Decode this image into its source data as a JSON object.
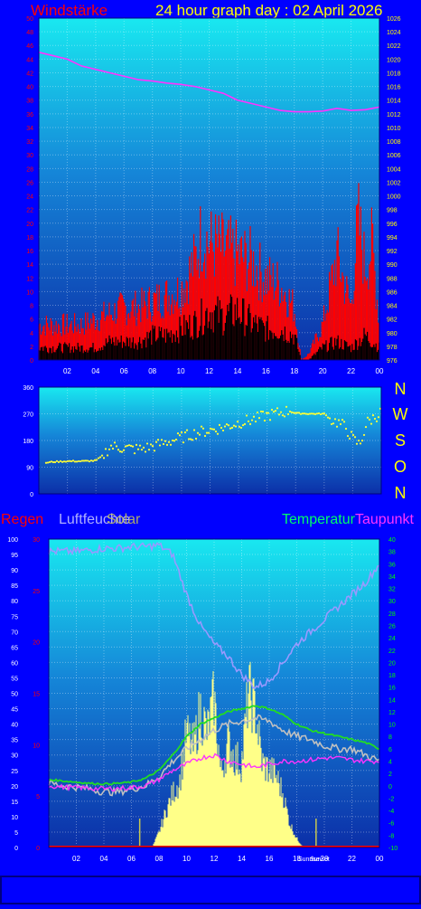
{
  "header": {
    "title": "24 hour graph day : 02 April 2026"
  },
  "colors": {
    "background": "#0000ff",
    "wind_max": "#ff0000",
    "wind_avg": "#000000",
    "pressure": "#ff33ff",
    "direction": "#ffff33",
    "humidity": "#9999ff",
    "temperature": "#22dd22",
    "dewpoint": "#ff33ff",
    "sun": "#ffff88",
    "rain": "#ff0000",
    "chill": "#c0c0c0",
    "axis_red": "#ff0000",
    "axis_yellow": "#ffff00",
    "axis_green": "#00ff00",
    "axis_white": "#ffffff"
  },
  "chart_data": [
    {
      "type": "line",
      "title": "Windstärke",
      "x_ticks": [
        "02",
        "04",
        "06",
        "08",
        "10",
        "12",
        "14",
        "16",
        "18",
        "20",
        "22",
        "00"
      ],
      "y_left_ticks": [
        0,
        2,
        4,
        6,
        8,
        10,
        12,
        14,
        16,
        18,
        20,
        22,
        24,
        26,
        28,
        30,
        32,
        34,
        36,
        38,
        40,
        42,
        44,
        46,
        48,
        50
      ],
      "y_left_range": [
        0,
        50
      ],
      "y_right_ticks": [
        976,
        978,
        980,
        982,
        984,
        986,
        988,
        990,
        992,
        994,
        996,
        998,
        1000,
        1002,
        1004,
        1006,
        1008,
        1010,
        1012,
        1014,
        1016,
        1018,
        1020,
        1022,
        1024,
        1026
      ],
      "y_right_range": [
        976,
        1026
      ],
      "series": [
        {
          "key": "wind_max",
          "color": "#ff0000",
          "axis": "left",
          "x": [
            0,
            1,
            2,
            3,
            4,
            5,
            6,
            7,
            8,
            9,
            10,
            11,
            11.5,
            12,
            13,
            14,
            15,
            16,
            17,
            18,
            18.5,
            19,
            20,
            20.5,
            21,
            22,
            22.5,
            23,
            23.5,
            24
          ],
          "values": [
            6,
            6,
            6,
            6,
            7,
            8,
            9,
            9,
            10,
            11,
            12,
            17,
            22,
            20,
            19,
            18,
            17,
            14,
            13,
            9,
            0,
            1,
            6,
            12,
            18,
            9,
            24,
            16,
            20,
            6
          ]
        },
        {
          "key": "wind_avg",
          "color": "#000000",
          "axis": "left",
          "x": [
            0,
            1,
            2,
            3,
            4,
            5,
            6,
            7,
            8,
            9,
            10,
            11,
            12,
            13,
            14,
            15,
            16,
            17,
            18,
            18.5,
            19,
            20,
            21,
            22,
            23,
            24
          ],
          "values": [
            2,
            2,
            2,
            2,
            2,
            3,
            3,
            3,
            4,
            4,
            5,
            6,
            8,
            7,
            8,
            6,
            5,
            5,
            4,
            0,
            0,
            2,
            3,
            2,
            4,
            2
          ]
        },
        {
          "key": "pressure",
          "color": "#ff33ff",
          "axis": "right",
          "x": [
            0,
            1,
            2,
            3,
            4,
            5,
            6,
            7,
            8,
            9,
            10,
            11,
            12,
            13,
            14,
            15,
            16,
            17,
            18,
            19,
            20,
            21,
            22,
            23,
            24
          ],
          "values": [
            1021,
            1020.5,
            1020,
            1019,
            1018.5,
            1018,
            1017.5,
            1017,
            1016.8,
            1016.5,
            1016.3,
            1016,
            1015.5,
            1015,
            1014,
            1013.5,
            1013,
            1012.5,
            1012.3,
            1012.3,
            1012.4,
            1012.8,
            1012.5,
            1012.6,
            1013
          ]
        }
      ]
    },
    {
      "type": "scatter",
      "title": "Windrichtung",
      "x_range": [
        0,
        24
      ],
      "y_ticks": [
        0,
        90,
        180,
        270,
        360
      ],
      "y_range": [
        0,
        360
      ],
      "direction_labels": [
        "N",
        "W",
        "S",
        "O",
        "N"
      ],
      "series": [
        {
          "key": "direction",
          "color": "#ffff33",
          "x": [
            0,
            0.5,
            1,
            2,
            3,
            4,
            4.5,
            5,
            6,
            7,
            7.5,
            8,
            9,
            10,
            11,
            12,
            13,
            14,
            15,
            16,
            17,
            17.5,
            18,
            19,
            20,
            20.5,
            21,
            21.5,
            22,
            22.5,
            23,
            24
          ],
          "values": [
            95,
            105,
            108,
            110,
            110,
            112,
            130,
            160,
            155,
            150,
            155,
            160,
            175,
            190,
            205,
            215,
            225,
            240,
            250,
            265,
            275,
            280,
            272,
            270,
            270,
            250,
            240,
            225,
            185,
            165,
            240,
            275
          ]
        }
      ]
    },
    {
      "type": "line",
      "legend": [
        "Regen",
        "Luftfeuchte",
        "Solar",
        "Temperatur",
        "Taupunkt"
      ],
      "x_ticks": [
        "02",
        "04",
        "06",
        "08",
        "10",
        "12",
        "14",
        "16",
        "18",
        "20",
        "22",
        "00"
      ],
      "x_annotations": [
        "Sunrise",
        "Sunset"
      ],
      "y_humidity_ticks": [
        0,
        5,
        10,
        15,
        20,
        25,
        30,
        35,
        40,
        45,
        50,
        55,
        60,
        65,
        70,
        75,
        80,
        85,
        90,
        95,
        100
      ],
      "y_humidity_range": [
        0,
        100
      ],
      "y_rain_ticks": [
        0,
        5,
        10,
        15,
        20,
        25,
        30
      ],
      "y_rain_range": [
        0,
        30
      ],
      "y_temp_ticks": [
        -10,
        -8,
        -6,
        -4,
        -2,
        0,
        2,
        4,
        6,
        8,
        10,
        12,
        14,
        16,
        18,
        20,
        22,
        24,
        26,
        28,
        30,
        32,
        34,
        36,
        38,
        40
      ],
      "y_temp_range": [
        -10,
        40
      ],
      "series": [
        {
          "key": "sun",
          "name": "Solar",
          "color": "#ffff88",
          "axis": "humidity",
          "x": [
            0,
            7.5,
            8,
            8.5,
            9,
            9.5,
            10,
            10.5,
            11,
            11.5,
            12,
            12.5,
            13,
            13.5,
            14,
            14.5,
            15,
            15.5,
            16,
            16.5,
            17,
            17.5,
            18,
            18.5,
            24
          ],
          "values": [
            0,
            0,
            5,
            12,
            18,
            22,
            38,
            33,
            46,
            38,
            50,
            24,
            35,
            30,
            28,
            52,
            46,
            28,
            26,
            24,
            18,
            8,
            3,
            0,
            0
          ]
        },
        {
          "key": "humidity",
          "name": "Luftfeuchte",
          "color": "#9999ff",
          "axis": "humidity",
          "x": [
            0,
            1,
            2,
            3,
            4,
            5,
            6,
            7,
            8,
            9,
            10,
            11,
            12,
            13,
            14,
            15,
            16,
            17,
            18,
            19,
            20,
            21,
            22,
            23,
            24
          ],
          "values": [
            96,
            96,
            96,
            96.5,
            97,
            97,
            97.5,
            97.5,
            98,
            95,
            82,
            72,
            66,
            62,
            56,
            52,
            54,
            60,
            66,
            70,
            74,
            78,
            82,
            86,
            92
          ]
        },
        {
          "key": "temperature",
          "name": "Temperatur",
          "color": "#22dd22",
          "axis": "temp",
          "x": [
            0,
            1,
            2,
            3,
            4,
            5,
            6,
            7,
            8,
            9,
            10,
            11,
            12,
            13,
            14,
            15,
            16,
            17,
            18,
            19,
            20,
            21,
            22,
            23,
            24
          ],
          "values": [
            1,
            0.8,
            0.6,
            0.4,
            0.3,
            0.4,
            0.6,
            1.2,
            2.5,
            5,
            8,
            10,
            11,
            12,
            12.5,
            13,
            12.5,
            11.5,
            10,
            9,
            8.5,
            8,
            7.5,
            7,
            6
          ]
        },
        {
          "key": "chill",
          "color": "#c0c0c0",
          "axis": "temp",
          "x": [
            0,
            1,
            2,
            3,
            4,
            5,
            6,
            7,
            8,
            9,
            10,
            11,
            12,
            13,
            14,
            15,
            16,
            17,
            18,
            19,
            20,
            21,
            22,
            23,
            24
          ],
          "values": [
            0.5,
            0,
            -0.2,
            -0.5,
            -1,
            -1,
            -0.5,
            0,
            1.5,
            4,
            6,
            7.5,
            9,
            10,
            10.5,
            11,
            10.5,
            9,
            8,
            7.5,
            6.5,
            6,
            6,
            5,
            4
          ]
        },
        {
          "key": "dewpoint",
          "name": "Taupunkt",
          "color": "#ff33ff",
          "axis": "temp",
          "x": [
            0,
            1,
            2,
            3,
            4,
            5,
            6,
            7,
            8,
            9,
            10,
            11,
            12,
            13,
            14,
            15,
            16,
            17,
            18,
            19,
            20,
            21,
            22,
            23,
            24
          ],
          "values": [
            0,
            -0.2,
            -0.3,
            -0.4,
            -0.5,
            -0.4,
            -0.3,
            0,
            1,
            2.5,
            3.5,
            4.5,
            5,
            4,
            3.5,
            3,
            3.5,
            4,
            4,
            4.2,
            4.5,
            4.5,
            4.2,
            4,
            4
          ]
        },
        {
          "key": "rain",
          "name": "Regen",
          "color": "#ff0000",
          "axis": "rain",
          "x": [
            0,
            24
          ],
          "values": [
            0,
            0
          ]
        }
      ]
    }
  ]
}
